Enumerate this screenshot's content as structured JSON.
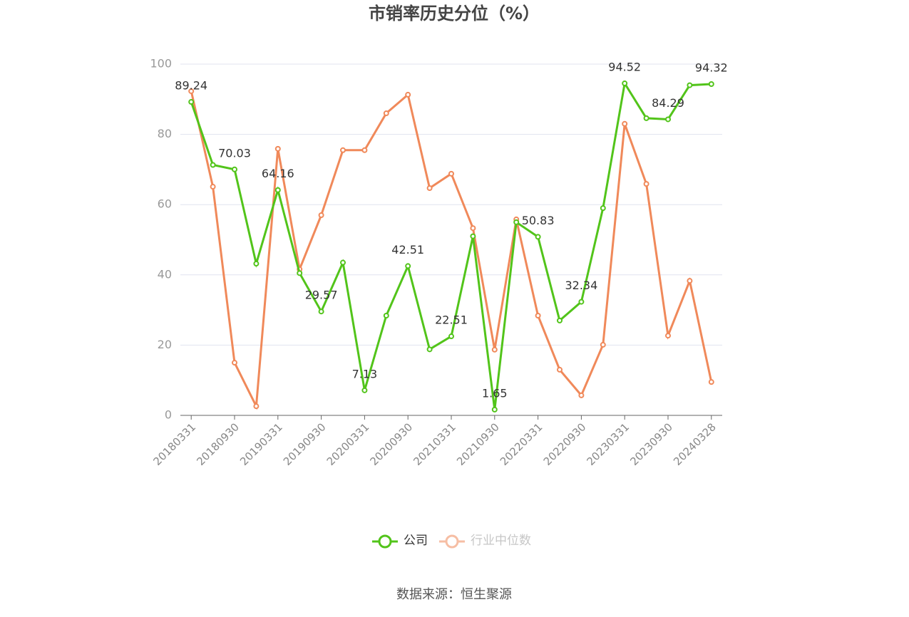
{
  "chart_data": {
    "type": "line",
    "title": "市销率历史分位（%）",
    "categories": [
      "20180331",
      null,
      "20180930",
      null,
      "20190331",
      null,
      "20190930",
      null,
      "20200331",
      null,
      "20200930",
      null,
      "20210331",
      null,
      "20210930",
      null,
      "20220331",
      null,
      "20220930",
      null,
      "20230331",
      null,
      "20230930",
      null,
      "20240328"
    ],
    "series": [
      {
        "name": "公司",
        "color": "#52c41a",
        "values": [
          89.24,
          71.3,
          70.03,
          43.2,
          64.16,
          40.5,
          29.57,
          43.5,
          7.13,
          28.4,
          42.51,
          18.8,
          22.51,
          51.0,
          1.65,
          55.0,
          50.83,
          27.0,
          32.34,
          59.0,
          94.52,
          84.6,
          84.29,
          94.0,
          94.32
        ]
      },
      {
        "name": "行业中位数",
        "color": "#f0895a",
        "values": [
          92.3,
          65.1,
          15.0,
          2.6,
          75.9,
          41.6,
          57.0,
          75.5,
          75.5,
          86.0,
          91.3,
          64.7,
          68.8,
          53.3,
          18.7,
          55.8,
          28.4,
          13.0,
          5.7,
          20.1,
          83.0,
          65.9,
          22.7,
          38.3,
          9.5
        ]
      }
    ],
    "label_series": 0,
    "label_every": 2,
    "ylim": [
      0,
      100
    ],
    "yticks": [
      0,
      20,
      40,
      60,
      80,
      100
    ],
    "grid": true,
    "source": "数据来源：恒生聚源"
  }
}
